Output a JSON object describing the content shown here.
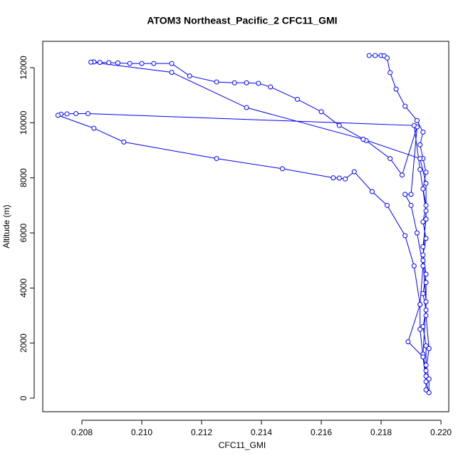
{
  "chart_data": {
    "type": "line",
    "title": "ATOM3 Northeast_Pacific_2 CFC11_GMI",
    "x_label": "CFC11_GMI",
    "y_label": "Altitude (m)",
    "x": [
      0.2176,
      0.2178,
      0.218,
      0.2181,
      0.2182,
      0.2183,
      0.2185,
      0.2188,
      0.2192,
      0.2194,
      0.2193,
      0.2194,
      0.2195,
      0.2194,
      0.2195,
      0.2194,
      0.2195,
      0.2194,
      0.2195,
      0.2194,
      0.2195,
      0.2194,
      0.2195,
      0.2195,
      0.2196,
      0.2196,
      0.2195,
      0.2194,
      0.2189,
      0.2193,
      0.2194,
      0.2192,
      0.219,
      0.2188,
      0.219,
      0.2192,
      0.2187,
      0.2183,
      0.2175,
      0.2166,
      0.216,
      0.2152,
      0.2143,
      0.2139,
      0.2135,
      0.2131,
      0.2125,
      0.2116,
      0.211,
      0.2104,
      0.21,
      0.2096,
      0.2092,
      0.2089,
      0.2086,
      0.2084,
      0.2083,
      0.211,
      0.2135,
      0.2174,
      0.2193,
      0.2195,
      0.2195,
      0.2194,
      0.2195,
      0.2195,
      0.2196,
      0.2195,
      0.2194,
      0.2195,
      0.2194,
      0.2195,
      0.2193,
      0.2191,
      0.2082,
      0.2078,
      0.2075,
      0.2073,
      0.2072,
      0.2084,
      0.2094,
      0.2125,
      0.2147,
      0.2164,
      0.2166,
      0.2168,
      0.2171,
      0.2177,
      0.2182,
      0.2188,
      0.2191,
      0.2193,
      0.2193,
      0.2194,
      0.2195,
      0.2195
    ],
    "series": [
      {
        "color": "#0000ff",
        "values": [
          12440,
          12440,
          12440,
          12430,
          12350,
          11820,
          11220,
          10600,
          10080,
          9660,
          9200,
          8700,
          8200,
          7600,
          7000,
          6400,
          5800,
          5200,
          4500,
          3800,
          3200,
          2600,
          1900,
          1200,
          700,
          200,
          600,
          1500,
          2050,
          3400,
          4800,
          6000,
          7000,
          7400,
          7400,
          9850,
          8100,
          8700,
          9350,
          9900,
          10400,
          10850,
          11300,
          11430,
          11450,
          11450,
          11480,
          11700,
          12150,
          12150,
          12150,
          12150,
          12170,
          12180,
          12190,
          12210,
          12200,
          11830,
          10550,
          9400,
          8700,
          7800,
          6500,
          5500,
          4200,
          3000,
          1800,
          1000,
          1600,
          3500,
          5000,
          6800,
          8300,
          9900,
          10330,
          10330,
          10320,
          10310,
          10270,
          9800,
          9300,
          8700,
          8330,
          8000,
          7990,
          7960,
          8220,
          7500,
          7000,
          5900,
          4800,
          3400,
          2500,
          1500,
          800,
          300
        ]
      }
    ],
    "xlim": [
      0.20669,
      0.22026
    ],
    "ylim": [
      -491,
      12956
    ],
    "xticks": [
      0.208,
      {
        "value": 0.21,
        "label": "0.210"
      },
      0.212,
      0.214,
      0.216,
      0.218,
      {
        "value": 0.22,
        "label": "0.220"
      }
    ],
    "yticks": [
      0,
      2000,
      4000,
      6000,
      8000,
      10000,
      12000
    ]
  }
}
